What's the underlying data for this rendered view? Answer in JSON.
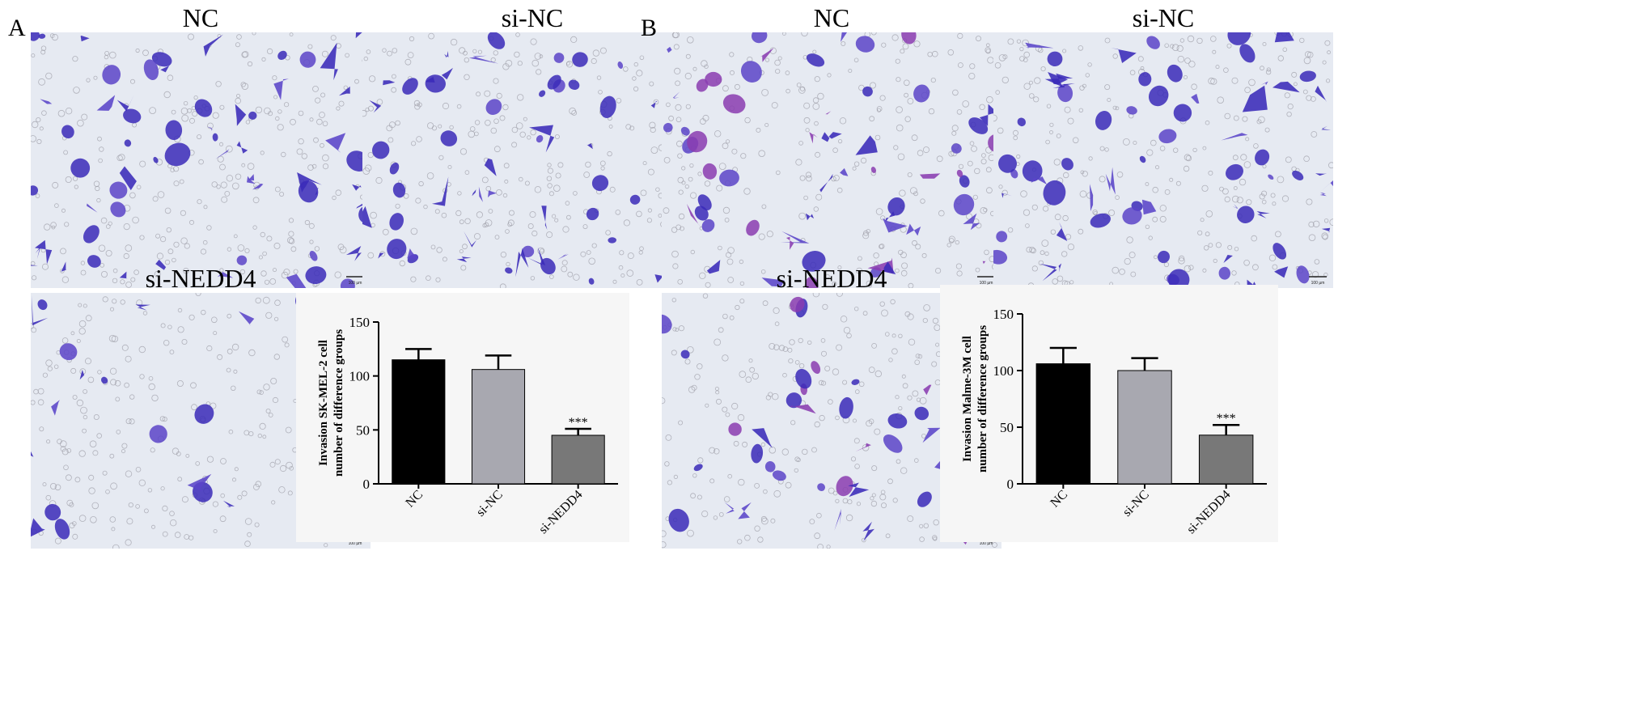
{
  "panels": [
    {
      "letter": "A",
      "image_titles": [
        "NC",
        "si-NC",
        "si-NEDD4"
      ],
      "chart_data": {
        "type": "bar",
        "categories": [
          "NC",
          "si-NC",
          "si-NEDD4"
        ],
        "values": [
          115,
          106,
          45
        ],
        "errors": [
          10,
          13,
          6
        ],
        "significance": [
          "",
          "",
          "***"
        ],
        "ylabel_line1": "Invasion SK-MEL-2 cell",
        "ylabel_line2": "number of difference groups",
        "ylim": [
          0,
          150
        ],
        "yticks": [
          0,
          50,
          100,
          150
        ],
        "bar_colors": [
          "#000000",
          "#a8a8b0",
          "#787878"
        ]
      }
    },
    {
      "letter": "B",
      "image_titles": [
        "NC",
        "si-NC",
        "si-NEDD4"
      ],
      "chart_data": {
        "type": "bar",
        "categories": [
          "NC",
          "si-NC",
          "si-NEDD4"
        ],
        "values": [
          106,
          100,
          43
        ],
        "errors": [
          14,
          11,
          9
        ],
        "significance": [
          "",
          "",
          "***"
        ],
        "ylabel_line1": "Invasion Malme-3M cell",
        "ylabel_line2": "number of difference groups",
        "ylim": [
          0,
          150
        ],
        "yticks": [
          0,
          50,
          100,
          150
        ],
        "bar_colors": [
          "#000000",
          "#a8a8b0",
          "#787878"
        ]
      }
    }
  ],
  "scale_bar_label": "100 µm",
  "colors": {
    "stain_dark": "#3a2ab8",
    "stain_mid": "#5a44c8",
    "stain_purple": "#8a3cb0",
    "background": "#e6eaf2",
    "pore": "#9a9aa4"
  }
}
